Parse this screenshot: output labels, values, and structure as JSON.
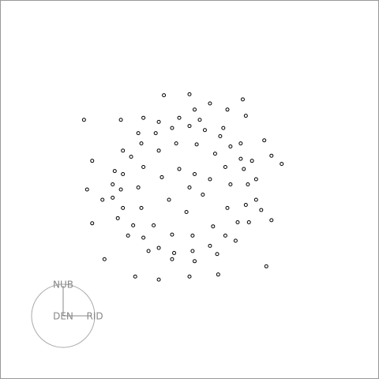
{
  "chart_data": {
    "type": "scatter",
    "x": [
      0.62,
      0.58,
      0.55,
      0.45,
      0.35,
      0.2,
      0.05,
      -0.12,
      -0.28,
      -0.42,
      -0.52,
      -0.6,
      -0.62,
      -0.6,
      -0.5,
      -0.4,
      -0.25,
      -0.1,
      0.08,
      0.25,
      0.4,
      0.52,
      0.6,
      0.7,
      0.66,
      0.55,
      0.38,
      0.15,
      -0.05,
      -0.25,
      -0.45,
      -0.6,
      -0.68,
      -0.7,
      -0.65,
      -0.55,
      -0.35,
      -0.12,
      0.1,
      0.32,
      0.5,
      0.63,
      0.7,
      0.45,
      0.4,
      0.3,
      0.12,
      -0.08,
      -0.25,
      -0.4,
      -0.45,
      -0.42,
      -0.3,
      -0.12,
      0.08,
      0.28,
      0.42,
      0.1,
      -0.05,
      0.18,
      -0.15,
      0.02,
      0.25,
      -0.22,
      0.05,
      -0.98,
      -0.62,
      -0.9,
      -0.95,
      -0.9,
      -0.78,
      -0.48,
      -0.25,
      0.05,
      0.33,
      0.8,
      0.85,
      0.95,
      0.85,
      0.6,
      0.05,
      -0.2,
      0.57,
      0.25,
      0.42,
      0.78,
      -0.7,
      -0.8,
      0.75,
      -0.4,
      0.1
    ],
    "values": [
      0.05,
      0.2,
      0.3,
      0.42,
      0.52,
      0.58,
      0.62,
      0.6,
      0.55,
      0.45,
      0.32,
      0.15,
      0,
      -0.18,
      -0.35,
      -0.47,
      -0.57,
      -0.62,
      -0.6,
      -0.55,
      -0.45,
      -0.32,
      -0.15,
      0.1,
      0.28,
      0.45,
      0.6,
      0.68,
      0.7,
      0.66,
      0.55,
      0.38,
      0.18,
      -0.08,
      -0.28,
      -0.45,
      -0.6,
      -0.68,
      -0.7,
      -0.63,
      -0.5,
      -0.32,
      -0.1,
      0.05,
      0.22,
      0.35,
      0.44,
      0.45,
      0.38,
      0.22,
      0.02,
      -0.18,
      -0.35,
      -0.44,
      -0.45,
      -0.36,
      -0.18,
      0.15,
      0.2,
      -0.05,
      -0.1,
      -0.22,
      0.1,
      0.12,
      0.02,
      0.68,
      0.68,
      0.28,
      0,
      -0.33,
      -0.68,
      -0.85,
      -0.88,
      -0.85,
      -0.83,
      -0.75,
      -0.3,
      0.25,
      0.33,
      0.72,
      0.93,
      0.92,
      0.88,
      0.84,
      0.78,
      0.48,
      0.05,
      -0.1,
      -0.2,
      0.7,
      0.78
    ],
    "xlim": [
      -1.8,
      1.9
    ],
    "ylim": [
      -1.85,
      1.85
    ],
    "color": "#000000",
    "gizmo": {
      "up": "NUB",
      "right": "RID",
      "toward": "DEN",
      "color": "#888888"
    }
  }
}
